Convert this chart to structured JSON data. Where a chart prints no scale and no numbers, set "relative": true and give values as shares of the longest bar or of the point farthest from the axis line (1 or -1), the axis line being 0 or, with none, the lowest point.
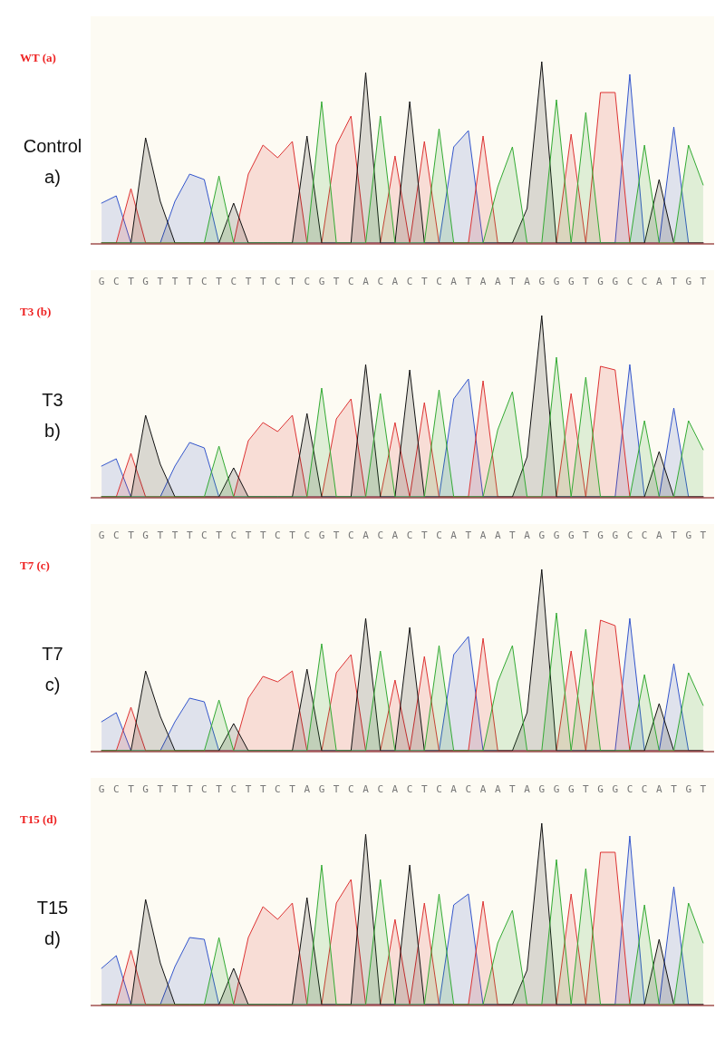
{
  "chart_data": [
    {
      "type": "area",
      "relative": true,
      "title": "WT (a)",
      "annotations": [
        "Control",
        "a)"
      ],
      "categories": [
        null,
        null,
        null,
        null,
        null,
        null,
        null,
        null,
        null,
        null,
        null,
        null,
        null,
        null,
        null,
        null,
        null,
        null,
        null,
        null,
        null,
        null,
        null,
        null,
        null,
        null,
        null,
        null,
        null,
        null,
        null,
        null,
        null,
        null,
        null,
        null,
        null,
        null,
        null,
        null,
        null,
        null
      ],
      "series": [
        {
          "color": "#3355cc",
          "values": [
            0.22,
            0.26,
            0,
            0,
            0,
            0.23,
            0.38,
            0.35,
            0,
            0,
            0,
            0,
            0,
            0,
            0,
            0,
            0,
            0,
            0,
            0,
            0,
            0,
            0,
            0,
            0.53,
            0.62,
            0,
            0,
            0,
            0,
            0,
            0,
            0,
            0,
            0,
            0,
            0.93,
            0,
            0,
            0.64,
            0,
            0
          ]
        },
        {
          "color": "#dd3333",
          "values": [
            0,
            0,
            0.3,
            0,
            0,
            0,
            0,
            0,
            0,
            0,
            0.38,
            0.54,
            0.47,
            0.56,
            0,
            0,
            0.54,
            0.7,
            0,
            0,
            0.48,
            0,
            0.56,
            0,
            0,
            0,
            0.59,
            0,
            0,
            0,
            0,
            0,
            0.6,
            0,
            0.83,
            0.83,
            0,
            0,
            0,
            0,
            0,
            0
          ]
        },
        {
          "color": "#111111",
          "values": [
            0,
            0,
            0,
            0.58,
            0.23,
            0,
            0,
            0,
            0,
            0.22,
            0,
            0,
            0,
            0,
            0.59,
            0,
            0,
            0,
            0.94,
            0,
            0,
            0.78,
            0,
            0,
            0,
            0,
            0,
            0,
            0,
            0.19,
            1,
            0,
            0,
            0,
            0,
            0,
            0,
            0,
            0.35,
            0,
            0,
            0
          ]
        },
        {
          "color": "#33aa33",
          "values": [
            0,
            0,
            0,
            0,
            0,
            0,
            0,
            0,
            0.37,
            0,
            0,
            0,
            0,
            0,
            0,
            0.78,
            0,
            0,
            0,
            0.7,
            0,
            0,
            0,
            0.63,
            0,
            0,
            0,
            0.31,
            0.53,
            0,
            0,
            0.79,
            0,
            0.72,
            0,
            0,
            0,
            0.54,
            0,
            0,
            0.54,
            0.32
          ]
        }
      ]
    },
    {
      "type": "area",
      "relative": true,
      "title": "T3 (b)",
      "annotations": [
        "T3",
        "b)"
      ],
      "categories": [
        "G",
        "C",
        "T",
        "G",
        "T",
        "T",
        "T",
        "C",
        "T",
        "C",
        "T",
        "T",
        "C",
        "T",
        "C",
        "G",
        "T",
        "C",
        "A",
        "C",
        "A",
        "C",
        "T",
        "C",
        "A",
        "T",
        "A",
        "A",
        "T",
        "A",
        "G",
        "G",
        "G",
        "T",
        "G",
        "G",
        "C",
        "C",
        "A",
        "T",
        "G",
        "T"
      ],
      "series": [
        {
          "color": "#3355cc",
          "values": [
            0.17,
            0.21,
            0,
            0,
            0,
            0.17,
            0.3,
            0.27,
            0,
            0,
            0,
            0,
            0,
            0,
            0,
            0,
            0,
            0,
            0,
            0,
            0,
            0,
            0,
            0,
            0.54,
            0.65,
            0,
            0,
            0,
            0,
            0,
            0,
            0,
            0,
            0,
            0,
            0.73,
            0,
            0,
            0.49,
            0,
            0
          ]
        },
        {
          "color": "#dd3333",
          "values": [
            0,
            0,
            0.24,
            0,
            0,
            0,
            0,
            0,
            0,
            0,
            0.31,
            0.41,
            0.36,
            0.45,
            0,
            0,
            0.43,
            0.54,
            0,
            0,
            0.41,
            0,
            0.52,
            0,
            0,
            0,
            0.64,
            0,
            0,
            0,
            0,
            0,
            0.57,
            0,
            0.72,
            0.7,
            0,
            0,
            0,
            0,
            0,
            0
          ]
        },
        {
          "color": "#111111",
          "values": [
            0,
            0,
            0,
            0.45,
            0.18,
            0,
            0,
            0,
            0,
            0.16,
            0,
            0,
            0,
            0,
            0.46,
            0,
            0,
            0,
            0.73,
            0,
            0,
            0.7,
            0,
            0,
            0,
            0,
            0,
            0,
            0,
            0.22,
            1,
            0,
            0,
            0,
            0,
            0,
            0,
            0,
            0.25,
            0,
            0,
            0
          ]
        },
        {
          "color": "#33aa33",
          "values": [
            0,
            0,
            0,
            0,
            0,
            0,
            0,
            0,
            0.28,
            0,
            0,
            0,
            0,
            0,
            0,
            0.6,
            0,
            0,
            0,
            0.57,
            0,
            0,
            0,
            0.59,
            0,
            0,
            0,
            0.37,
            0.58,
            0,
            0,
            0.77,
            0,
            0.66,
            0,
            0,
            0,
            0.42,
            0,
            0,
            0.42,
            0.26
          ]
        }
      ]
    },
    {
      "type": "area",
      "relative": true,
      "title": "T7 (c)",
      "annotations": [
        "T7",
        "c)"
      ],
      "categories": [
        "G",
        "C",
        "T",
        "G",
        "T",
        "T",
        "T",
        "C",
        "T",
        "C",
        "T",
        "T",
        "C",
        "T",
        "C",
        "G",
        "T",
        "C",
        "A",
        "C",
        "A",
        "C",
        "T",
        "C",
        "A",
        "T",
        "A",
        "A",
        "T",
        "A",
        "G",
        "G",
        "G",
        "T",
        "G",
        "G",
        "C",
        "C",
        "A",
        "T",
        "G",
        "T"
      ],
      "series": [
        {
          "color": "#3355cc",
          "values": [
            0.16,
            0.21,
            0,
            0,
            0,
            0.16,
            0.29,
            0.27,
            0,
            0,
            0,
            0,
            0,
            0,
            0,
            0,
            0,
            0,
            0,
            0,
            0,
            0,
            0,
            0,
            0.53,
            0.63,
            0,
            0,
            0,
            0,
            0,
            0,
            0,
            0,
            0,
            0,
            0.73,
            0,
            0,
            0.48,
            0,
            0
          ]
        },
        {
          "color": "#dd3333",
          "values": [
            0,
            0,
            0.24,
            0,
            0,
            0,
            0,
            0,
            0,
            0,
            0.29,
            0.41,
            0.38,
            0.44,
            0,
            0,
            0.43,
            0.53,
            0,
            0,
            0.39,
            0,
            0.52,
            0,
            0,
            0,
            0.62,
            0,
            0,
            0,
            0,
            0,
            0.55,
            0,
            0.72,
            0.69,
            0,
            0,
            0,
            0,
            0,
            0
          ]
        },
        {
          "color": "#111111",
          "values": [
            0,
            0,
            0,
            0.44,
            0.19,
            0,
            0,
            0,
            0,
            0.15,
            0,
            0,
            0,
            0,
            0.45,
            0,
            0,
            0,
            0.73,
            0,
            0,
            0.68,
            0,
            0,
            0,
            0,
            0,
            0,
            0,
            0.21,
            1,
            0,
            0,
            0,
            0,
            0,
            0,
            0,
            0.26,
            0,
            0,
            0
          ]
        },
        {
          "color": "#33aa33",
          "values": [
            0,
            0,
            0,
            0,
            0,
            0,
            0,
            0,
            0.28,
            0,
            0,
            0,
            0,
            0,
            0,
            0.59,
            0,
            0,
            0,
            0.55,
            0,
            0,
            0,
            0.58,
            0,
            0,
            0,
            0.38,
            0.58,
            0,
            0,
            0.76,
            0,
            0.67,
            0,
            0,
            0,
            0.42,
            0,
            0,
            0.43,
            0.25
          ]
        }
      ]
    },
    {
      "type": "area",
      "relative": true,
      "title": "T15 (d)",
      "annotations": [
        "T15",
        "d)"
      ],
      "categories": [
        "G",
        "C",
        "T",
        "G",
        "T",
        "T",
        "T",
        "C",
        "T",
        "C",
        "T",
        "T",
        "C",
        "T",
        "A",
        "G",
        "T",
        "C",
        "A",
        "C",
        "A",
        "C",
        "T",
        "C",
        "A",
        "C",
        "A",
        "A",
        "T",
        "A",
        "G",
        "G",
        "G",
        "T",
        "G",
        "G",
        "C",
        "C",
        "A",
        "T",
        "G",
        "T"
      ],
      "series": [
        {
          "color": "#3355cc",
          "values": [
            0.2,
            0.27,
            0,
            0,
            0,
            0.21,
            0.37,
            0.36,
            0,
            0,
            0,
            0,
            0,
            0,
            0,
            0,
            0,
            0,
            0,
            0,
            0,
            0,
            0,
            0,
            0.55,
            0.61,
            0,
            0,
            0,
            0,
            0,
            0,
            0,
            0,
            0,
            0,
            0.93,
            0,
            0,
            0.65,
            0,
            0
          ]
        },
        {
          "color": "#dd3333",
          "values": [
            0,
            0,
            0.3,
            0,
            0,
            0,
            0,
            0,
            0,
            0,
            0.37,
            0.54,
            0.47,
            0.56,
            0,
            0,
            0.56,
            0.69,
            0,
            0,
            0.47,
            0,
            0.56,
            0,
            0,
            0,
            0.57,
            0,
            0,
            0,
            0,
            0,
            0.61,
            0,
            0.84,
            0.84,
            0,
            0,
            0,
            0,
            0,
            0
          ]
        },
        {
          "color": "#111111",
          "values": [
            0,
            0,
            0,
            0.58,
            0.23,
            0,
            0,
            0,
            0,
            0.2,
            0,
            0,
            0,
            0,
            0.59,
            0,
            0,
            0,
            0.94,
            0,
            0,
            0.77,
            0,
            0,
            0,
            0,
            0,
            0,
            0,
            0.19,
            1,
            0,
            0,
            0,
            0,
            0,
            0,
            0,
            0.36,
            0,
            0,
            0
          ]
        },
        {
          "color": "#33aa33",
          "values": [
            0,
            0,
            0,
            0,
            0,
            0,
            0,
            0,
            0.37,
            0,
            0,
            0,
            0,
            0,
            0,
            0.77,
            0,
            0,
            0,
            0.69,
            0,
            0,
            0,
            0.61,
            0,
            0,
            0,
            0.34,
            0.52,
            0,
            0,
            0.8,
            0,
            0.75,
            0,
            0,
            0,
            0.55,
            0,
            0,
            0.56,
            0.34
          ]
        }
      ]
    }
  ]
}
